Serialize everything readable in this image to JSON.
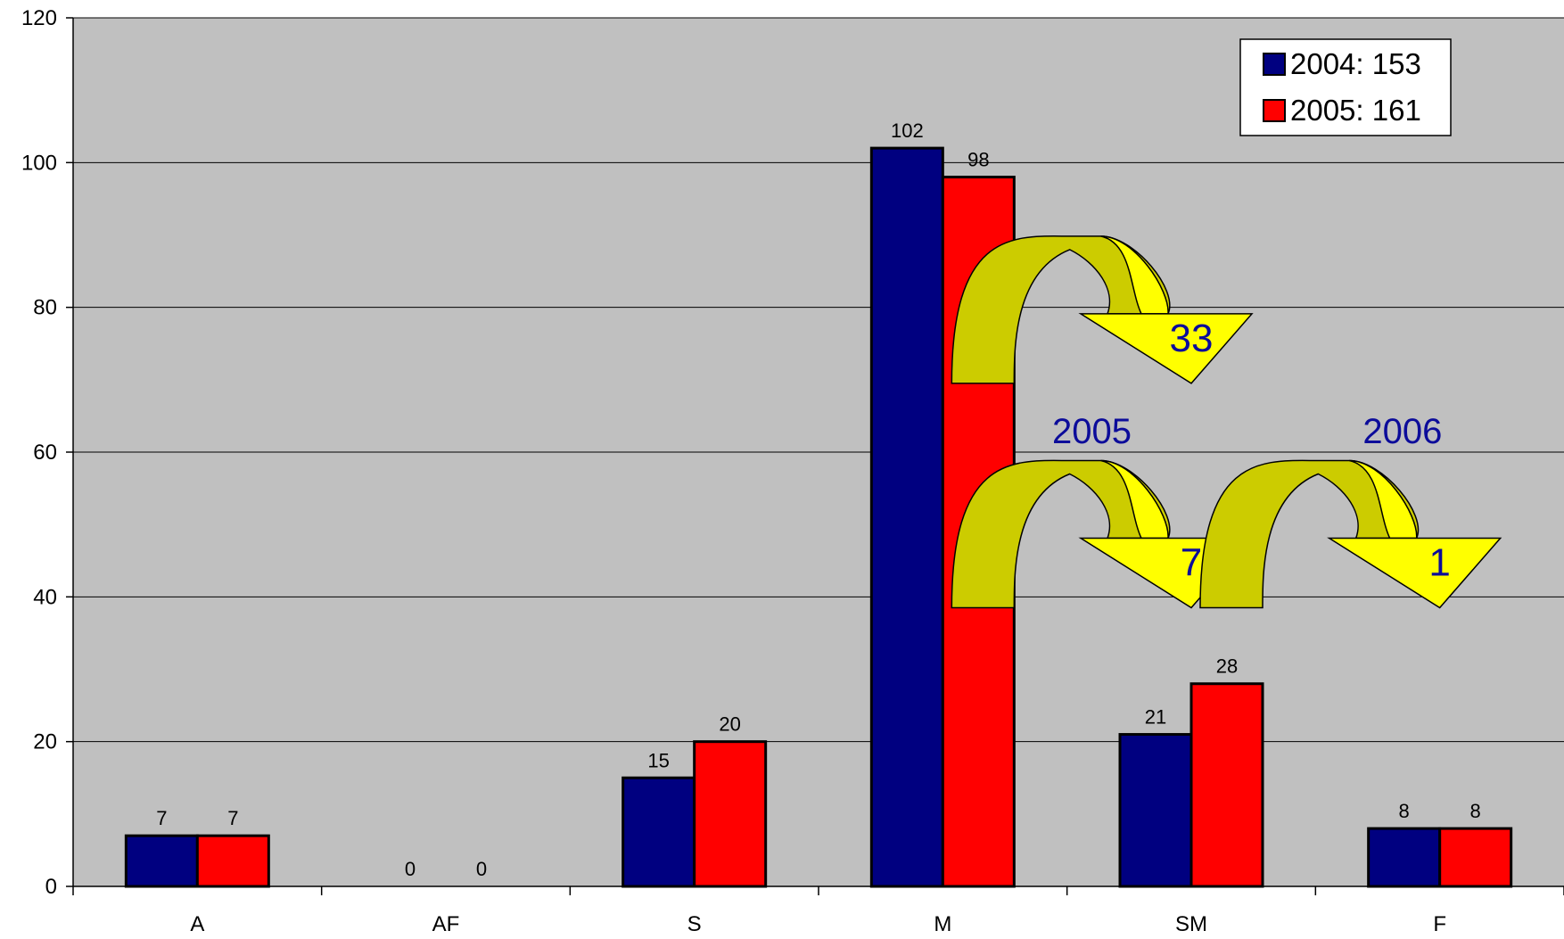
{
  "chart_data": {
    "type": "bar",
    "categories": [
      "A",
      "AF",
      "S",
      "M",
      "SM",
      "F"
    ],
    "series": [
      {
        "name": "2004: 153",
        "color": "#000080",
        "values": [
          7,
          0,
          15,
          102,
          21,
          8
        ]
      },
      {
        "name": "2005: 161",
        "color": "#ff0000",
        "values": [
          7,
          0,
          20,
          98,
          28,
          8
        ]
      }
    ],
    "ylim": [
      0,
      120
    ],
    "yticks": [
      0,
      20,
      40,
      60,
      80,
      100,
      120
    ],
    "grid": true,
    "plot_background": "#c0c0c0",
    "legend_position": "top-right",
    "annotations": {
      "arrow_fill": "#ffff00",
      "arrow_shade": "#cccc00",
      "text_color": "#0c0c9a",
      "arrows": [
        {
          "label": "33",
          "from_category": "M",
          "to_category": "SM"
        },
        {
          "label": "7",
          "from_category": "M",
          "to_category": "SM"
        },
        {
          "label": "1",
          "from_category": "SM",
          "to_category": "F"
        }
      ],
      "year_labels": [
        "2005",
        "2006"
      ]
    }
  }
}
